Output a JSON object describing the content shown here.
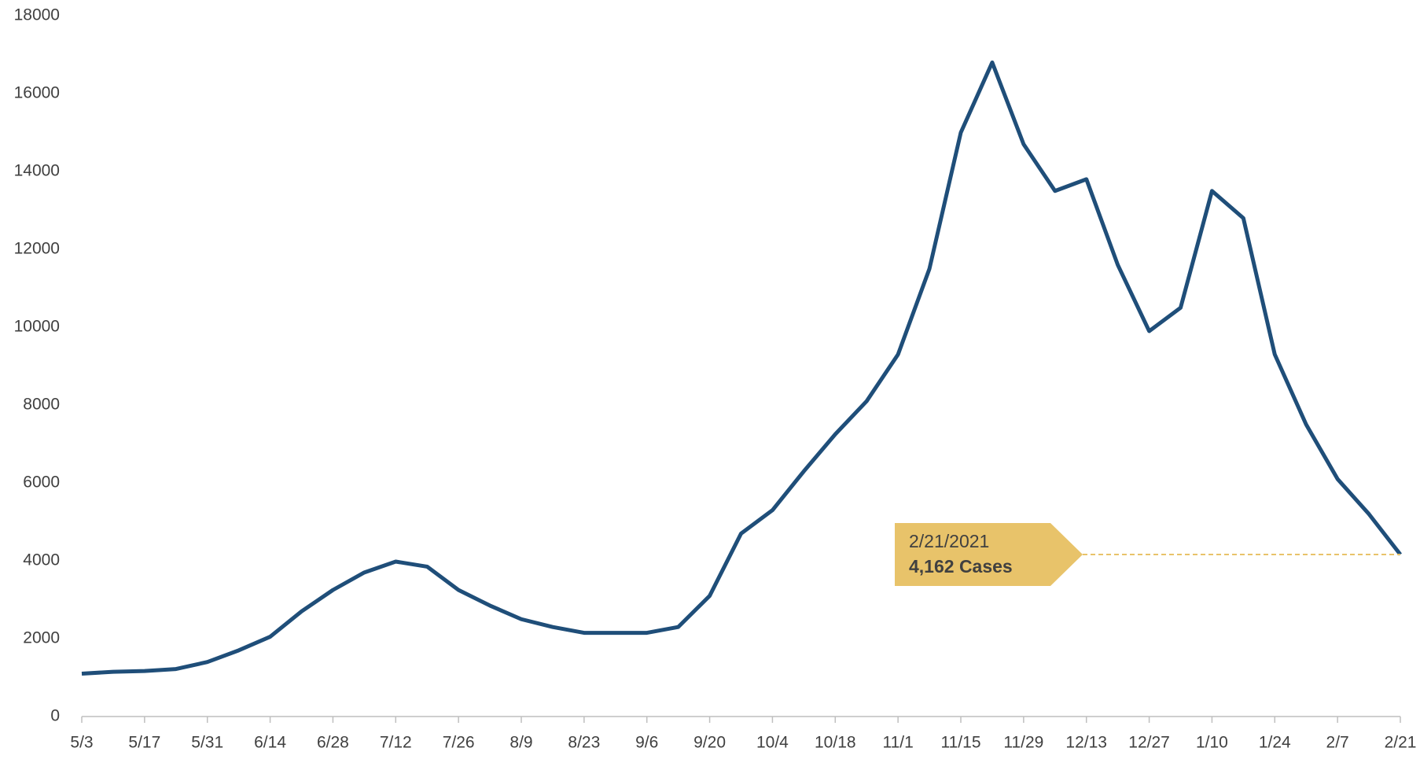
{
  "chart_data": {
    "type": "line",
    "categories": [
      "5/3",
      null,
      "5/17",
      null,
      "5/31",
      null,
      "6/14",
      null,
      "6/28",
      null,
      "7/12",
      null,
      "7/26",
      null,
      "8/9",
      null,
      "8/23",
      null,
      "9/6",
      null,
      "9/20",
      null,
      "10/4",
      null,
      "10/18",
      null,
      "11/1",
      null,
      "11/15",
      null,
      "11/29",
      null,
      "12/13",
      null,
      "12/27",
      null,
      "1/10",
      null,
      "1/24",
      null,
      "2/7",
      null,
      "2/21"
    ],
    "series": [
      {
        "name": "Cases",
        "color": "#1f4e79",
        "values": [
          1100,
          1150,
          1170,
          1220,
          1400,
          1700,
          2050,
          2700,
          3250,
          3700,
          3980,
          3850,
          3250,
          2850,
          2500,
          2300,
          2150,
          2150,
          2150,
          2300,
          3100,
          4700,
          5300,
          6300,
          7250,
          8100,
          9300,
          11500,
          15000,
          16800,
          14700,
          13500,
          13800,
          11600,
          9900,
          10500,
          13500,
          12800,
          9300,
          7500,
          6100,
          5200,
          4162
        ]
      }
    ],
    "ylim": [
      0,
      18000
    ],
    "yticks": [
      0,
      2000,
      4000,
      6000,
      8000,
      10000,
      12000,
      14000,
      16000,
      18000
    ],
    "grid": false,
    "annotation": {
      "date": "2/21/2021",
      "text": "4,162 Cases",
      "color": "#e8c36a"
    }
  }
}
